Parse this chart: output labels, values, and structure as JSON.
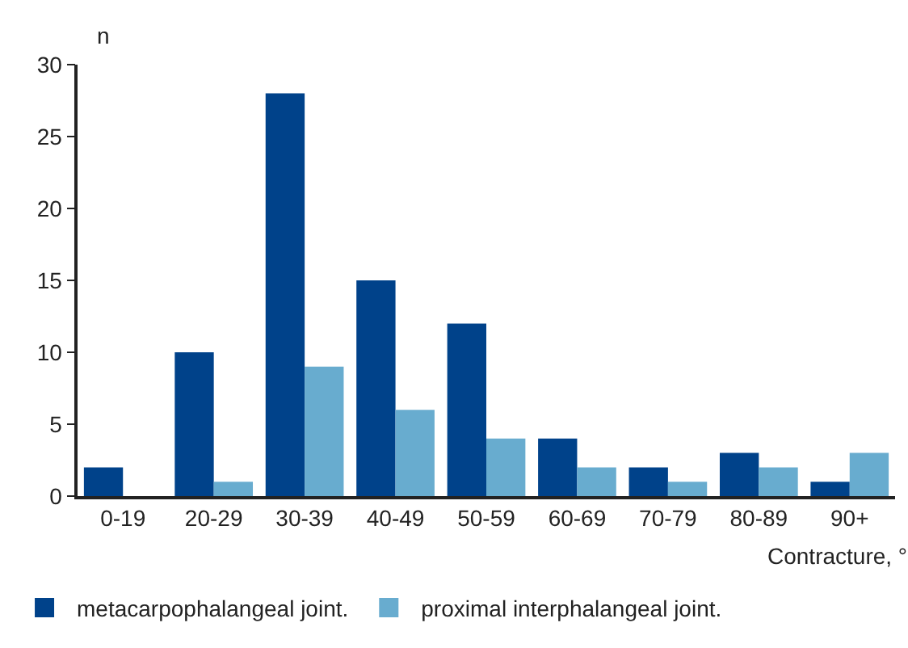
{
  "chart_data": {
    "type": "bar",
    "xlabel": "Contracture, °",
    "ylabel": "n",
    "categories": [
      "0-19",
      "20-29",
      "30-39",
      "40-49",
      "50-59",
      "60-69",
      "70-79",
      "80-89",
      "90+"
    ],
    "series": [
      {
        "name": "metacarpophalangeal joint.",
        "color": "#00428a",
        "values": [
          2,
          10,
          28,
          15,
          12,
          4,
          2,
          3,
          1
        ]
      },
      {
        "name": "proximal interphalangeal joint.",
        "color": "#68accf",
        "values": [
          0,
          1,
          9,
          6,
          4,
          2,
          1,
          2,
          3
        ]
      }
    ],
    "ylim": [
      0,
      30
    ],
    "yticks": [
      0,
      5,
      10,
      15,
      20,
      25,
      30
    ],
    "grid": false,
    "legend": "bottom"
  }
}
